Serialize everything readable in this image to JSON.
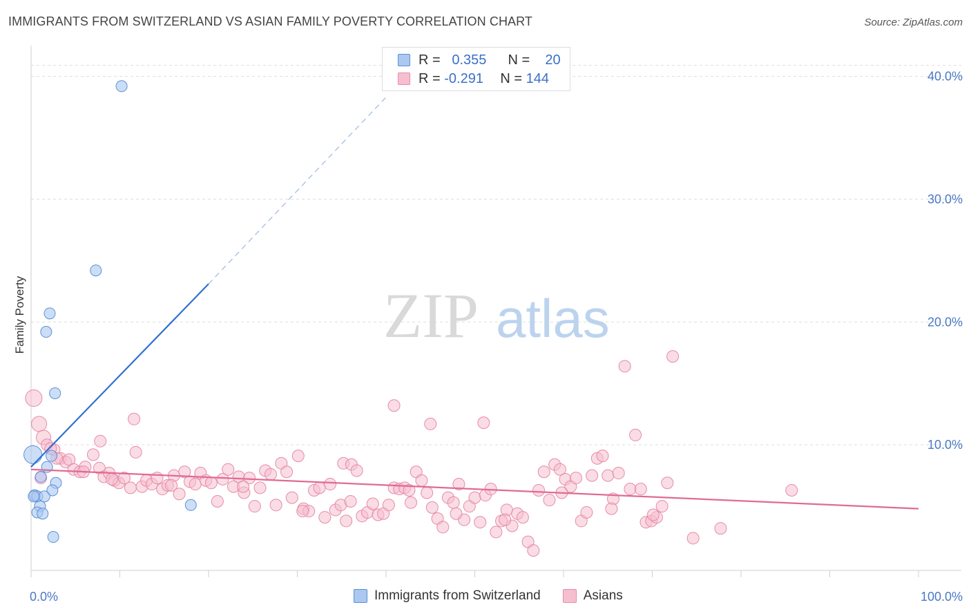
{
  "title": "IMMIGRANTS FROM SWITZERLAND VS ASIAN FAMILY POVERTY CORRELATION CHART",
  "source": "Source: ZipAtlas.com",
  "watermark": {
    "zip": "ZIP",
    "atlas": "atlas"
  },
  "legend": {
    "rows": [
      {
        "r_label": "R =",
        "r_value": "0.355",
        "n_label": "N =",
        "n_value": "20"
      },
      {
        "r_label": "R =",
        "r_value": "-0.291",
        "n_label": "N =",
        "n_value": "144"
      }
    ]
  },
  "bottom_legend": [
    "Immigrants from Switzerland",
    "Asians"
  ],
  "colors": {
    "blue_fill": "#aac8f0",
    "blue_stroke": "#5b8fd6",
    "blue_line": "#2f6fd0",
    "pink_fill": "#f6bfd0",
    "pink_stroke": "#e68aa8",
    "pink_line": "#e06a94",
    "tick_text": "#4a78c4",
    "grid": "#dddddd"
  },
  "chart_data": {
    "type": "scatter",
    "title": "IMMIGRANTS FROM SWITZERLAND VS ASIAN FAMILY POVERTY CORRELATION CHART",
    "xlabel": "",
    "ylabel": "Family Poverty",
    "xlim": [
      0,
      100
    ],
    "ylim": [
      0,
      42
    ],
    "x_tick_labels": [
      "0.0%",
      "100.0%"
    ],
    "y_ticks": [
      10,
      20,
      30,
      40
    ],
    "y_tick_labels": [
      "10.0%",
      "20.0%",
      "30.0%",
      "40.0%"
    ],
    "grid": true,
    "legend_position": "top-center",
    "series": [
      {
        "name": "Immigrants from Switzerland",
        "color": "#aac8f0",
        "points": [
          [
            10.2,
            39.2
          ],
          [
            7.3,
            24.2
          ],
          [
            2.1,
            20.7
          ],
          [
            1.7,
            19.2
          ],
          [
            2.7,
            14.2
          ],
          [
            0.2,
            9.2
          ],
          [
            2.3,
            9.1
          ],
          [
            1.8,
            8.2
          ],
          [
            1.1,
            7.4
          ],
          [
            2.8,
            6.9
          ],
          [
            2.4,
            6.3
          ],
          [
            0.4,
            5.9
          ],
          [
            0.7,
            5.8
          ],
          [
            1.5,
            5.8
          ],
          [
            0.3,
            5.8
          ],
          [
            1.0,
            5.0
          ],
          [
            18.0,
            5.1
          ],
          [
            0.7,
            4.5
          ],
          [
            1.3,
            4.4
          ],
          [
            2.5,
            2.5
          ]
        ],
        "trend": {
          "x": [
            0,
            20
          ],
          "y": [
            8.2,
            23.1
          ],
          "extended_dashed_to": [
            40,
            38.3
          ]
        }
      },
      {
        "name": "Asians",
        "color": "#f6bfd0",
        "points": [
          [
            0.3,
            13.8
          ],
          [
            0.9,
            11.7
          ],
          [
            1.4,
            10.6
          ],
          [
            1.8,
            10.0
          ],
          [
            2.6,
            9.6
          ],
          [
            3.3,
            8.9
          ],
          [
            3.9,
            8.6
          ],
          [
            2.2,
            9.7
          ],
          [
            4.3,
            8.8
          ],
          [
            4.8,
            8.0
          ],
          [
            5.5,
            7.8
          ],
          [
            6.1,
            8.2
          ],
          [
            7.0,
            9.2
          ],
          [
            7.7,
            8.1
          ],
          [
            8.2,
            7.4
          ],
          [
            8.8,
            7.7
          ],
          [
            9.4,
            7.1
          ],
          [
            9.9,
            6.9
          ],
          [
            10.5,
            7.3
          ],
          [
            11.2,
            6.5
          ],
          [
            11.8,
            9.4
          ],
          [
            12.5,
            6.6
          ],
          [
            13.0,
            7.1
          ],
          [
            13.6,
            6.8
          ],
          [
            14.2,
            7.3
          ],
          [
            14.8,
            6.4
          ],
          [
            15.4,
            6.7
          ],
          [
            16.1,
            7.5
          ],
          [
            16.7,
            6.0
          ],
          [
            17.3,
            7.8
          ],
          [
            17.9,
            7.0
          ],
          [
            18.5,
            6.8
          ],
          [
            19.1,
            7.7
          ],
          [
            19.7,
            7.1
          ],
          [
            20.3,
            6.9
          ],
          [
            21.0,
            5.4
          ],
          [
            21.6,
            7.2
          ],
          [
            22.2,
            8.0
          ],
          [
            22.8,
            6.6
          ],
          [
            23.4,
            7.4
          ],
          [
            24.0,
            6.1
          ],
          [
            24.6,
            7.3
          ],
          [
            25.2,
            5.0
          ],
          [
            25.8,
            6.5
          ],
          [
            26.4,
            7.9
          ],
          [
            27.0,
            7.6
          ],
          [
            27.6,
            5.1
          ],
          [
            28.2,
            8.5
          ],
          [
            28.8,
            7.8
          ],
          [
            29.4,
            5.7
          ],
          [
            30.1,
            9.1
          ],
          [
            30.7,
            4.8
          ],
          [
            31.3,
            4.6
          ],
          [
            31.9,
            6.3
          ],
          [
            32.5,
            6.5
          ],
          [
            33.1,
            4.1
          ],
          [
            33.7,
            6.8
          ],
          [
            34.3,
            4.7
          ],
          [
            34.9,
            5.1
          ],
          [
            35.5,
            3.8
          ],
          [
            35.2,
            8.5
          ],
          [
            36.1,
            8.4
          ],
          [
            36.7,
            7.9
          ],
          [
            37.3,
            4.2
          ],
          [
            37.9,
            4.5
          ],
          [
            38.5,
            5.2
          ],
          [
            39.1,
            4.3
          ],
          [
            39.7,
            4.4
          ],
          [
            40.3,
            5.1
          ],
          [
            40.9,
            6.5
          ],
          [
            41.5,
            6.4
          ],
          [
            42.1,
            6.5
          ],
          [
            42.8,
            5.3
          ],
          [
            43.4,
            7.8
          ],
          [
            44.0,
            7.1
          ],
          [
            44.6,
            6.1
          ],
          [
            45.2,
            4.9
          ],
          [
            45.8,
            4.0
          ],
          [
            46.4,
            3.3
          ],
          [
            47.0,
            5.7
          ],
          [
            47.6,
            5.3
          ],
          [
            48.2,
            6.8
          ],
          [
            48.8,
            3.9
          ],
          [
            49.4,
            5.0
          ],
          [
            50.0,
            5.7
          ],
          [
            50.6,
            3.7
          ],
          [
            51.2,
            5.9
          ],
          [
            51.8,
            6.4
          ],
          [
            52.4,
            2.9
          ],
          [
            53.0,
            3.8
          ],
          [
            53.6,
            4.7
          ],
          [
            54.2,
            3.4
          ],
          [
            54.8,
            4.4
          ],
          [
            55.4,
            4.1
          ],
          [
            56.0,
            2.1
          ],
          [
            56.6,
            1.4
          ],
          [
            57.2,
            6.3
          ],
          [
            57.8,
            7.8
          ],
          [
            58.4,
            5.5
          ],
          [
            59.0,
            8.4
          ],
          [
            59.6,
            8.0
          ],
          [
            60.2,
            7.2
          ],
          [
            60.8,
            6.6
          ],
          [
            61.4,
            7.3
          ],
          [
            62.0,
            3.8
          ],
          [
            62.6,
            4.5
          ],
          [
            63.2,
            7.5
          ],
          [
            63.8,
            8.9
          ],
          [
            64.4,
            9.1
          ],
          [
            65.0,
            7.5
          ],
          [
            65.6,
            5.6
          ],
          [
            66.2,
            7.7
          ],
          [
            66.9,
            16.4
          ],
          [
            67.5,
            6.4
          ],
          [
            68.1,
            10.8
          ],
          [
            68.7,
            6.4
          ],
          [
            69.3,
            3.7
          ],
          [
            69.9,
            3.8
          ],
          [
            70.5,
            4.1
          ],
          [
            71.1,
            5.0
          ],
          [
            71.7,
            6.9
          ],
          [
            72.3,
            17.2
          ],
          [
            74.6,
            2.4
          ],
          [
            77.7,
            3.2
          ],
          [
            85.7,
            6.3
          ],
          [
            11.6,
            12.1
          ],
          [
            7.8,
            10.3
          ],
          [
            40.9,
            13.2
          ],
          [
            45.0,
            11.7
          ],
          [
            51.0,
            11.8
          ],
          [
            1.1,
            7.3
          ],
          [
            2.9,
            8.9
          ],
          [
            5.9,
            7.8
          ],
          [
            9.1,
            7.2
          ],
          [
            15.8,
            6.7
          ],
          [
            23.9,
            6.6
          ],
          [
            30.6,
            4.6
          ],
          [
            36.0,
            5.4
          ],
          [
            42.6,
            6.3
          ],
          [
            47.9,
            4.4
          ],
          [
            53.4,
            3.9
          ],
          [
            59.8,
            6.1
          ],
          [
            65.4,
            4.8
          ],
          [
            70.1,
            4.3
          ]
        ],
        "trend": {
          "x": [
            0,
            100
          ],
          "y": [
            8.0,
            4.8
          ]
        }
      }
    ]
  }
}
